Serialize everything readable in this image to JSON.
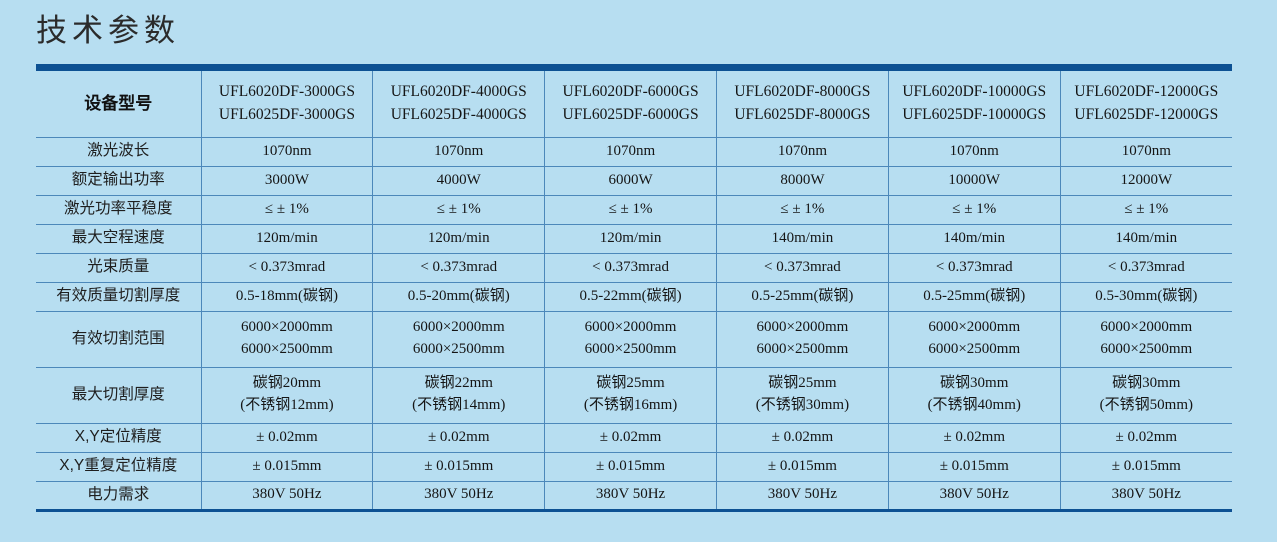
{
  "page": {
    "title": "技术参数"
  },
  "colors": {
    "background": "#b7def1",
    "bar": "#0d5193",
    "cell_border": "#4c88ba",
    "text": "#1a1a1a"
  },
  "table": {
    "corner_label": "设备型号",
    "columns": [
      "UFL6020DF-3000GS\nUFL6025DF-3000GS",
      "UFL6020DF-4000GS\nUFL6025DF-4000GS",
      "UFL6020DF-6000GS\nUFL6025DF-6000GS",
      "UFL6020DF-8000GS\nUFL6025DF-8000GS",
      "UFL6020DF-10000GS\nUFL6025DF-10000GS",
      "UFL6020DF-12000GS\nUFL6025DF-12000GS"
    ],
    "rows": [
      {
        "label": "激光波长",
        "values": [
          "1070nm",
          "1070nm",
          "1070nm",
          "1070nm",
          "1070nm",
          "1070nm"
        ]
      },
      {
        "label": "额定输出功率",
        "values": [
          "3000W",
          "4000W",
          "6000W",
          "8000W",
          "10000W",
          "12000W"
        ]
      },
      {
        "label": "激光功率平稳度",
        "values": [
          "≤ ± 1%",
          "≤ ± 1%",
          "≤ ± 1%",
          "≤ ± 1%",
          "≤ ± 1%",
          "≤ ± 1%"
        ]
      },
      {
        "label": "最大空程速度",
        "values": [
          "120m/min",
          "120m/min",
          "120m/min",
          "140m/min",
          "140m/min",
          "140m/min"
        ]
      },
      {
        "label": "光束质量",
        "values": [
          "< 0.373mrad",
          "< 0.373mrad",
          "< 0.373mrad",
          "< 0.373mrad",
          "< 0.373mrad",
          "< 0.373mrad"
        ]
      },
      {
        "label": "有效质量切割厚度",
        "values": [
          "0.5-18mm(碳钢)",
          "0.5-20mm(碳钢)",
          "0.5-22mm(碳钢)",
          "0.5-25mm(碳钢)",
          "0.5-25mm(碳钢)",
          "0.5-30mm(碳钢)"
        ]
      },
      {
        "label": "有效切割范围",
        "values": [
          "6000×2000mm\n6000×2500mm",
          "6000×2000mm\n6000×2500mm",
          "6000×2000mm\n6000×2500mm",
          "6000×2000mm\n6000×2500mm",
          "6000×2000mm\n6000×2500mm",
          "6000×2000mm\n6000×2500mm"
        ]
      },
      {
        "label": "最大切割厚度",
        "values": [
          "碳钢20mm\n(不锈钢12mm)",
          "碳钢22mm\n(不锈钢14mm)",
          "碳钢25mm\n(不锈钢16mm)",
          "碳钢25mm\n(不锈钢30mm)",
          "碳钢30mm\n(不锈钢40mm)",
          "碳钢30mm\n(不锈钢50mm)"
        ]
      },
      {
        "label": "X,Y定位精度",
        "values": [
          "± 0.02mm",
          "± 0.02mm",
          "± 0.02mm",
          "± 0.02mm",
          "± 0.02mm",
          "± 0.02mm"
        ]
      },
      {
        "label": "X,Y重复定位精度",
        "values": [
          "± 0.015mm",
          "± 0.015mm",
          "± 0.015mm",
          "± 0.015mm",
          "± 0.015mm",
          "± 0.015mm"
        ]
      },
      {
        "label": "电力需求",
        "values": [
          "380V 50Hz",
          "380V 50Hz",
          "380V 50Hz",
          "380V 50Hz",
          "380V 50Hz",
          "380V 50Hz"
        ]
      }
    ]
  }
}
